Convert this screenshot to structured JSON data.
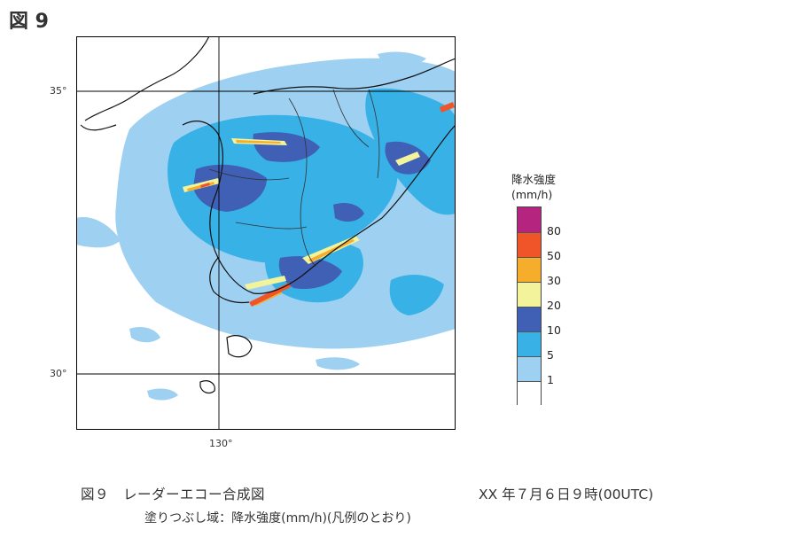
{
  "figure_label": "図 9",
  "map": {
    "lat_labels": [
      "35°",
      "30°"
    ],
    "lon_labels": [
      "130°"
    ],
    "graticule": {
      "latitudes": [
        35,
        30
      ],
      "longitudes": [
        130
      ]
    }
  },
  "legend": {
    "title_line1": "降水強度",
    "title_line2": "(mm/h)",
    "classes": [
      {
        "label": "80",
        "color": "#b5247f"
      },
      {
        "label": "50",
        "color": "#f0552a"
      },
      {
        "label": "30",
        "color": "#f6ad2b"
      },
      {
        "label": "20",
        "color": "#f2f39a"
      },
      {
        "label": "10",
        "color": "#4060b5"
      },
      {
        "label": "5",
        "color": "#38b2e6"
      },
      {
        "label": "1",
        "color": "#9ed0f2"
      },
      {
        "label": "",
        "color": "#ffffff"
      }
    ]
  },
  "caption": {
    "title": "図９　レーダーエコー合成図",
    "datetime": "XX 年７月６日９時(00UTC)",
    "note": "塗りつぶし域：降水強度(mm/h)(凡例のとおり)"
  }
}
